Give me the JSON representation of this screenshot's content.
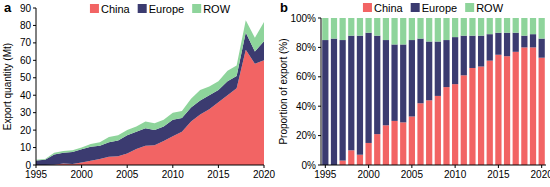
{
  "chart_data": [
    {
      "type": "area",
      "title": "a",
      "y_label": "Export quantity (Mt)",
      "stacked": true,
      "grid": false,
      "legend": "top",
      "x": [
        1995,
        1996,
        1997,
        1998,
        1999,
        2000,
        2001,
        2002,
        2003,
        2004,
        2005,
        2006,
        2007,
        2008,
        2009,
        2010,
        2011,
        2012,
        2013,
        2014,
        2015,
        2016,
        2017,
        2018,
        2019,
        2020
      ],
      "xlim": [
        1995,
        2020
      ],
      "xticks": [
        1995,
        2000,
        2005,
        2010,
        2015,
        2020
      ],
      "ylim": [
        0,
        90
      ],
      "yticks": [
        0,
        10,
        20,
        30,
        40,
        50,
        60,
        70,
        80,
        90
      ],
      "series": [
        {
          "name": "China",
          "color": "#f26464",
          "values": [
            0,
            0,
            0.2,
            0.8,
            0.6,
            1.5,
            2.5,
            3.5,
            4.8,
            5,
            6.6,
            9.2,
            11,
            11.3,
            13.8,
            16.5,
            19,
            25,
            29,
            32,
            36,
            40,
            44,
            66,
            58,
            60
          ]
        },
        {
          "name": "Europe",
          "color": "#3b3b70",
          "values": [
            2.6,
            3,
            5.8,
            6.2,
            6.9,
            7.5,
            8,
            7.5,
            8.2,
            9,
            10.4,
            9.8,
            10,
            8.7,
            8.2,
            9.5,
            8,
            8,
            8,
            8,
            7,
            8,
            7,
            10,
            7,
            11
          ]
        },
        {
          "name": "ROW",
          "color": "#8ed49b",
          "values": [
            0.4,
            0.5,
            1,
            1,
            1,
            1,
            1.5,
            2,
            3,
            3,
            3,
            3,
            4,
            4,
            4,
            4,
            4,
            5,
            6,
            5,
            5,
            6,
            6,
            7,
            8,
            11
          ]
        }
      ]
    },
    {
      "type": "bar",
      "title": "b",
      "y_label": "Proportion of export (%)",
      "stacked": true,
      "grid": false,
      "legend": "top",
      "categories": [
        "1995",
        null,
        null,
        null,
        null,
        "2000",
        null,
        null,
        null,
        null,
        "2005",
        null,
        null,
        null,
        null,
        "2010",
        null,
        null,
        null,
        null,
        "2015",
        null,
        null,
        null,
        null,
        "2020"
      ],
      "ylim": [
        0,
        100
      ],
      "yticks": [
        {
          "value": 0,
          "label": "0%"
        },
        {
          "value": 20,
          "label": "20%"
        },
        {
          "value": 40,
          "label": "40%"
        },
        {
          "value": 60,
          "label": "60%"
        },
        {
          "value": 80,
          "label": "80%"
        },
        {
          "value": 100,
          "label": "100%"
        }
      ],
      "series": [
        {
          "name": "China",
          "color": "#f26464",
          "values": [
            0,
            0,
            3,
            10,
            7,
            15,
            21,
            27,
            30,
            29,
            33,
            42,
            44,
            47,
            53,
            55,
            61,
            66,
            67,
            71,
            75,
            74,
            77,
            80,
            80,
            73
          ]
        },
        {
          "name": "Europe",
          "color": "#3b3b70",
          "values": [
            85,
            86,
            82,
            78,
            81,
            75,
            67,
            58,
            52,
            53,
            52,
            44,
            40,
            37,
            32,
            32,
            27,
            22,
            21,
            18,
            15,
            16,
            13,
            8,
            9,
            13
          ]
        },
        {
          "name": "ROW",
          "color": "#8ed49b",
          "values": [
            15,
            14,
            15,
            12,
            12,
            10,
            12,
            15,
            18,
            18,
            15,
            14,
            16,
            16,
            15,
            13,
            12,
            12,
            12,
            11,
            10,
            10,
            10,
            12,
            11,
            14
          ]
        }
      ]
    }
  ]
}
